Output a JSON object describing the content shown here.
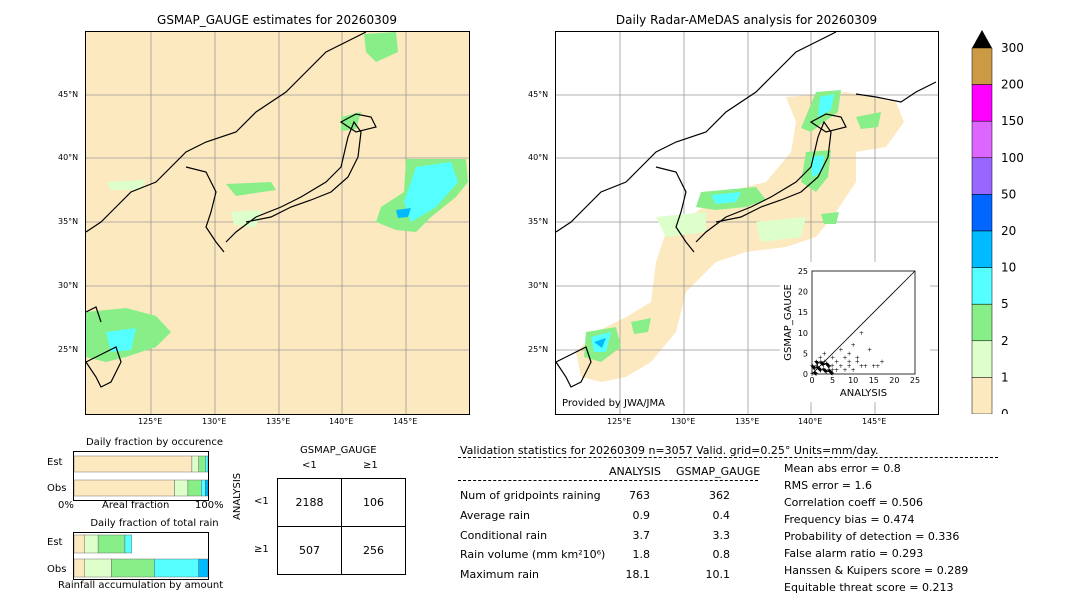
{
  "left_map": {
    "title": "GSMAP_GAUGE estimates for 20260309",
    "lat_labels": [
      "45°N",
      "40°N",
      "35°N",
      "30°N",
      "25°N"
    ],
    "lon_labels": [
      "125°E",
      "130°E",
      "135°E",
      "140°E",
      "145°E"
    ]
  },
  "right_map": {
    "title": "Daily Radar-AMeDAS analysis for 20260309",
    "lat_labels": [
      "45°N",
      "40°N",
      "35°N",
      "30°N",
      "25°N"
    ],
    "lon_labels": [
      "125°E",
      "130°E",
      "135°E",
      "140°E",
      "145°E"
    ],
    "credit": "Provided by JWA/JMA"
  },
  "colorbar": {
    "labels": [
      "300",
      "200",
      "150",
      "100",
      "50",
      "20",
      "10",
      "5",
      "2",
      "1",
      "0"
    ],
    "colors": [
      "#cc9a44",
      "#ff00ff",
      "#dd66ff",
      "#9966ff",
      "#0066ff",
      "#00bbff",
      "#55ffff",
      "#88ee88",
      "#ddffcc",
      "#fde9c0"
    ]
  },
  "fraction_occurrence": {
    "title": "Daily fraction by occurence",
    "rows": [
      "Est",
      "Obs"
    ],
    "axis_left": "0%",
    "axis_mid": "Areal fraction",
    "axis_right": "100%"
  },
  "fraction_rain": {
    "title": "Daily fraction of total rain",
    "rows": [
      "Est",
      "Obs"
    ],
    "footer": "Rainfall accumulation by amount"
  },
  "contingency": {
    "col_header": "GSMAP_GAUGE",
    "row_header": "ANALYSIS",
    "col_labels": [
      "<1",
      "≥1"
    ],
    "row_labels": [
      "<1",
      "≥1"
    ],
    "cells": [
      [
        "2188",
        "106"
      ],
      [
        "507",
        "256"
      ]
    ]
  },
  "validation": {
    "header": "Validation statistics for 20260309  n=3057 Valid. grid=0.25° Units=mm/day.",
    "col1": "ANALYSIS",
    "col2": "GSMAP_GAUGE",
    "rows": [
      {
        "label": "Num of gridpoints raining",
        "a": "763",
        "g": "362"
      },
      {
        "label": "Average rain",
        "a": "0.9",
        "g": "0.4"
      },
      {
        "label": "Conditional rain",
        "a": "3.7",
        "g": "3.3"
      },
      {
        "label": "Rain volume (mm km²10⁶)",
        "a": "1.8",
        "g": "0.8"
      },
      {
        "label": "Maximum rain",
        "a": "18.1",
        "g": "10.1"
      }
    ],
    "scores": [
      "Mean abs error =    0.8",
      "RMS error =    1.6",
      "Correlation coeff =  0.506",
      "Frequency bias =  0.474",
      "Probability of detection =  0.336",
      "False alarm ratio =  0.293",
      "Hanssen & Kuipers score =  0.289",
      "Equitable threat score =  0.213"
    ]
  },
  "chart_data": [
    {
      "type": "scatter",
      "xlabel": "ANALYSIS",
      "ylabel": "GSMAP_GAUGE",
      "xlim": [
        0,
        25
      ],
      "ylim": [
        0,
        25
      ],
      "ticks": [
        "0",
        "5",
        "10",
        "15",
        "20",
        "25"
      ],
      "points": [
        [
          12,
          10
        ],
        [
          14,
          6
        ],
        [
          17,
          3
        ],
        [
          10,
          7
        ],
        [
          9,
          5
        ],
        [
          8,
          4
        ],
        [
          11,
          3
        ],
        [
          13,
          2
        ],
        [
          7,
          6
        ],
        [
          6,
          3
        ],
        [
          5,
          4
        ],
        [
          4,
          2
        ],
        [
          3,
          3
        ],
        [
          2,
          1
        ],
        [
          9,
          2
        ],
        [
          10,
          1
        ],
        [
          8,
          1
        ],
        [
          6,
          1
        ],
        [
          5,
          1
        ],
        [
          15,
          2
        ],
        [
          3,
          5
        ],
        [
          2,
          4
        ],
        [
          1,
          3
        ],
        [
          1,
          2
        ],
        [
          4,
          1
        ],
        [
          7,
          2
        ],
        [
          12,
          2
        ],
        [
          16,
          2
        ],
        [
          11,
          4
        ],
        [
          9,
          3
        ]
      ]
    },
    {
      "type": "bar",
      "title": "Daily fraction by occurence",
      "categories": [
        "Est",
        "Obs"
      ],
      "series": [
        {
          "color": "#fde9c0",
          "values": [
            0.88,
            0.75
          ]
        },
        {
          "color": "#ddffcc",
          "values": [
            0.05,
            0.1
          ]
        },
        {
          "color": "#88ee88",
          "values": [
            0.05,
            0.1
          ]
        },
        {
          "color": "#55ffff",
          "values": [
            0.02,
            0.03
          ]
        },
        {
          "color": "#00bbff",
          "values": [
            0.0,
            0.02
          ]
        }
      ]
    },
    {
      "type": "bar",
      "title": "Daily fraction of total rain",
      "categories": [
        "Est",
        "Obs"
      ],
      "series": [
        {
          "color": "#fde9c0",
          "values": [
            0.08,
            0.08
          ]
        },
        {
          "color": "#ddffcc",
          "values": [
            0.1,
            0.2
          ]
        },
        {
          "color": "#88ee88",
          "values": [
            0.2,
            0.32
          ]
        },
        {
          "color": "#55ffff",
          "values": [
            0.05,
            0.33
          ]
        },
        {
          "color": "#00bbff",
          "values": [
            0.0,
            0.07
          ]
        }
      ]
    }
  ]
}
